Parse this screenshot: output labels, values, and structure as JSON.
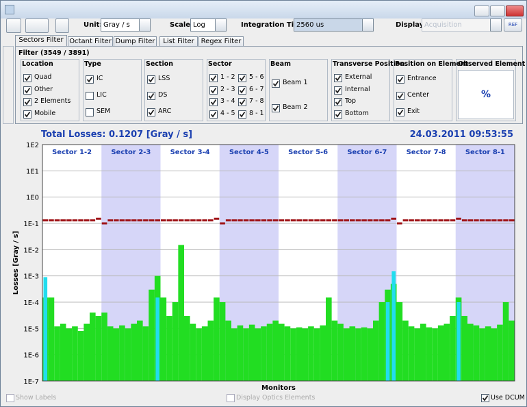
{
  "toolbar": {
    "unit_label": "Unit:",
    "unit": "Gray / s",
    "scale_label": "Scale:",
    "scale": "Log",
    "integration_label": "Integration Time:",
    "integration": "2560 us",
    "display_label": "Display:",
    "display": "Acquisition",
    "ref": "REF"
  },
  "tabs": {
    "items": [
      "Sectors Filter",
      "Octant Filter",
      "Dump Filter",
      "List Filter",
      "Regex Filter"
    ],
    "active": 0
  },
  "filter": {
    "title": "Filter (3549 / 3891)",
    "groups": [
      {
        "title": "Location",
        "items": [
          {
            "label": "Quad",
            "checked": true
          },
          {
            "label": "Other",
            "checked": true
          },
          {
            "label": "2 Elements",
            "checked": true
          },
          {
            "label": "Mobile",
            "checked": true
          }
        ]
      },
      {
        "title": "Type",
        "items": [
          {
            "label": "IC",
            "checked": true
          },
          {
            "label": "LIC",
            "checked": false
          },
          {
            "label": "SEM",
            "checked": false
          }
        ]
      },
      {
        "title": "Section",
        "items": [
          {
            "label": "LSS",
            "checked": true
          },
          {
            "label": "DS",
            "checked": true
          },
          {
            "label": "ARC",
            "checked": true
          }
        ]
      },
      {
        "title": "Sector",
        "items": [
          {
            "label": "1 - 2",
            "checked": true
          },
          {
            "label": "2 - 3",
            "checked": true
          },
          {
            "label": "3 - 4",
            "checked": true
          },
          {
            "label": "4 - 5",
            "checked": true
          },
          {
            "label": "5 - 6",
            "checked": true
          },
          {
            "label": "6 - 7",
            "checked": true
          },
          {
            "label": "7 - 8",
            "checked": true
          },
          {
            "label": "8 - 1",
            "checked": true
          }
        ]
      },
      {
        "title": "Beam",
        "items": [
          {
            "label": "Beam 1",
            "checked": true
          },
          {
            "label": "Beam 2",
            "checked": true
          }
        ]
      },
      {
        "title": "Transverse Position",
        "items": [
          {
            "label": "External",
            "checked": true
          },
          {
            "label": "Internal",
            "checked": true
          },
          {
            "label": "Top",
            "checked": true
          },
          {
            "label": "Bottom",
            "checked": true
          }
        ]
      },
      {
        "title": "Position on Element",
        "items": [
          {
            "label": "Entrance",
            "checked": true
          },
          {
            "label": "Center",
            "checked": true
          },
          {
            "label": "Exit",
            "checked": true
          }
        ]
      }
    ],
    "observed": {
      "title": "Observed Element",
      "value": "%"
    }
  },
  "chart_data": {
    "type": "bar",
    "title": "Total Losses: 0.1207 [Gray / s]",
    "timestamp": "24.03.2011 09:53:55",
    "x_label": "Monitors",
    "y_label": "Losses [Gray / s]",
    "log_scale": true,
    "ylim": [
      1e-07,
      100
    ],
    "yticks": [
      {
        "value": 100,
        "label": "1E2"
      },
      {
        "value": 10,
        "label": "1E1"
      },
      {
        "value": 1,
        "label": "1E0"
      },
      {
        "value": 0.1,
        "label": "1E-1"
      },
      {
        "value": 0.01,
        "label": "1E-2"
      },
      {
        "value": 0.001,
        "label": "1E-3"
      },
      {
        "value": 0.0001,
        "label": "1E-4"
      },
      {
        "value": 1e-05,
        "label": "1E-5"
      },
      {
        "value": 1e-06,
        "label": "1E-6"
      },
      {
        "value": 1e-07,
        "label": "1E-7"
      }
    ],
    "sectors": [
      "Sector 1-2",
      "Sector 2-3",
      "Sector 3-4",
      "Sector 4-5",
      "Sector 5-6",
      "Sector 6-7",
      "Sector 7-8",
      "Sector 8-1"
    ],
    "sector_shaded": [
      false,
      true,
      false,
      true,
      false,
      true,
      false,
      true
    ],
    "sector_color": "#d6d6f8",
    "series": [
      {
        "color": "#22dd22",
        "values": [
          0.00015,
          0.00015,
          1.2e-05,
          1.5e-05,
          1e-05,
          1.2e-05,
          8e-06,
          1.5e-05,
          4e-05,
          3e-05,
          4e-05,
          1.2e-05,
          1e-05,
          1.3e-05,
          1e-05,
          1.5e-05,
          2e-05,
          1.2e-05,
          0.0003,
          0.001,
          0.00015,
          3e-05,
          0.0001,
          0.015,
          3e-05,
          1.5e-05,
          1e-05,
          1.2e-05,
          2e-05,
          0.00015,
          0.0001,
          2e-05,
          1e-05,
          1.3e-05,
          1e-05,
          1.4e-05,
          1e-05,
          1.2e-05,
          1.5e-05,
          2e-05,
          1.5e-05,
          1.2e-05,
          1e-05,
          1.1e-05,
          1e-05,
          1.2e-05,
          1e-05,
          1.3e-05,
          0.00015,
          2e-05,
          1.5e-05,
          1e-05,
          1.2e-05,
          1e-05,
          1.1e-05,
          1e-05,
          2e-05,
          0.0001,
          0.0003,
          0.0005,
          0.0001,
          2e-05,
          1.2e-05,
          1e-05,
          1.5e-05,
          1.1e-05,
          1e-05,
          1.3e-05,
          1.5e-05,
          3e-05,
          0.00015,
          3e-05,
          1.5e-05,
          1.3e-05,
          1e-05,
          1.2e-05,
          1e-05,
          1.4e-05,
          0.0001,
          2e-05
        ]
      },
      {
        "color": "#22ddee",
        "values": [
          0.0009,
          null,
          null,
          null,
          null,
          null,
          null,
          null,
          null,
          null,
          null,
          null,
          null,
          null,
          null,
          null,
          null,
          null,
          null,
          0.00015,
          null,
          null,
          null,
          null,
          null,
          null,
          null,
          null,
          null,
          null,
          null,
          null,
          null,
          null,
          null,
          null,
          null,
          null,
          null,
          null,
          null,
          null,
          null,
          null,
          null,
          null,
          null,
          null,
          null,
          null,
          null,
          null,
          null,
          null,
          null,
          null,
          null,
          null,
          0.0001,
          0.0015,
          null,
          null,
          null,
          null,
          null,
          null,
          null,
          null,
          null,
          null,
          0.0001,
          null,
          null,
          null,
          null,
          null,
          null,
          null,
          null,
          null
        ]
      },
      {
        "color": "#a01418",
        "values": [
          0.13,
          0.13,
          0.13,
          0.13,
          0.13,
          0.13,
          0.13,
          0.13,
          0.13,
          0.15,
          0.1,
          0.13,
          0.13,
          0.13,
          0.13,
          0.13,
          0.13,
          0.13,
          0.13,
          0.13,
          0.13,
          0.13,
          0.13,
          0.13,
          0.13,
          0.13,
          0.13,
          0.13,
          0.13,
          0.15,
          0.1,
          0.13,
          0.13,
          0.13,
          0.13,
          0.13,
          0.13,
          0.13,
          0.13,
          0.13,
          0.13,
          0.13,
          0.13,
          0.13,
          0.13,
          0.13,
          0.13,
          0.13,
          0.13,
          0.13,
          0.13,
          0.13,
          0.13,
          0.13,
          0.13,
          0.13,
          0.13,
          0.13,
          0.13,
          0.15,
          0.1,
          0.13,
          0.13,
          0.13,
          0.13,
          0.13,
          0.13,
          0.13,
          0.13,
          0.13,
          0.15,
          0.13,
          0.13,
          0.13,
          0.13,
          0.13,
          0.13,
          0.13,
          0.13,
          0.13
        ]
      }
    ]
  },
  "options": [
    {
      "label": "Show Labels",
      "checked": false,
      "enabled": false
    },
    {
      "label": "Display Optics Elements",
      "checked": false,
      "enabled": false
    },
    {
      "label": "Use DCUM",
      "checked": true,
      "enabled": true
    }
  ]
}
